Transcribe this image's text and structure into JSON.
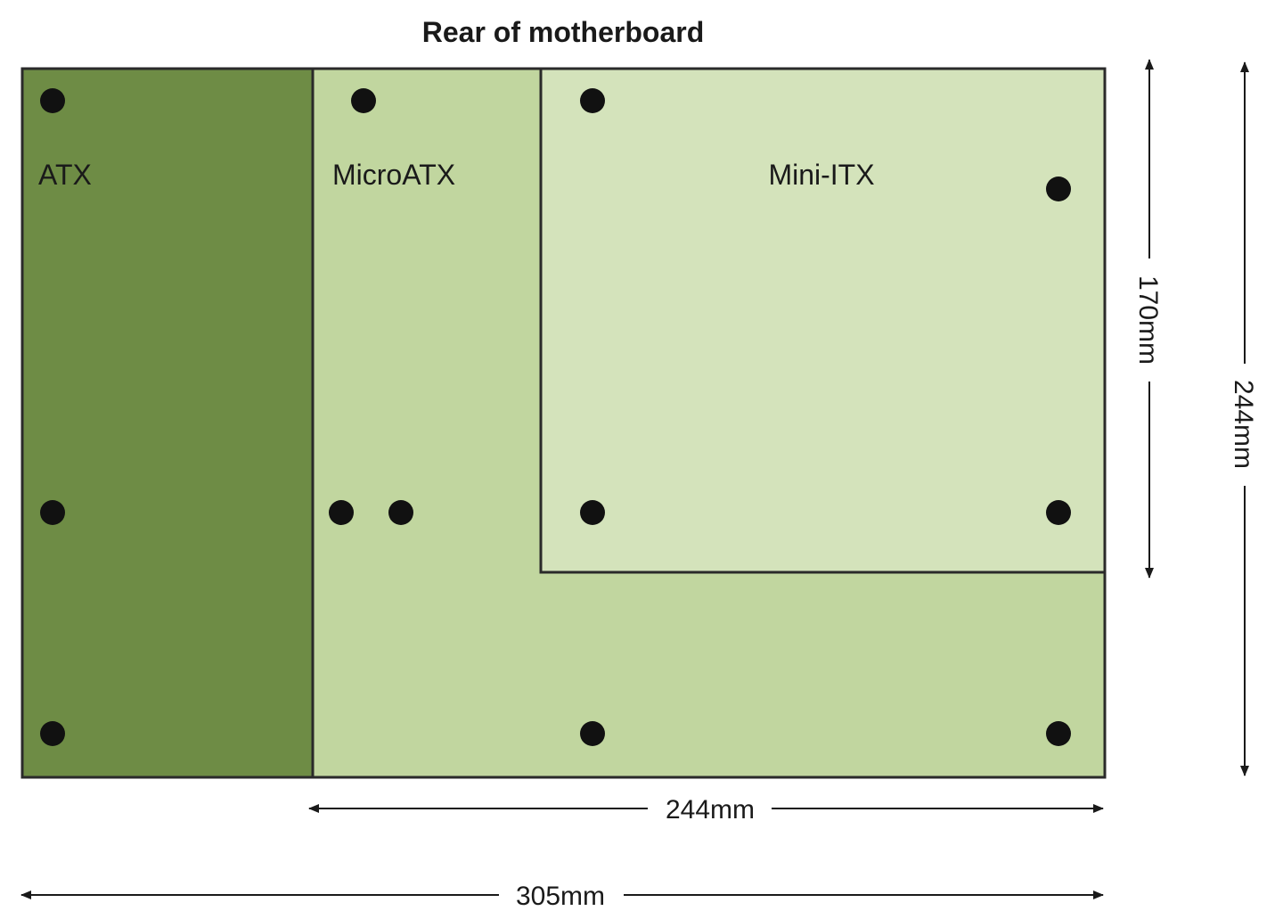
{
  "title": "Rear of motherboard",
  "boards": {
    "atx": {
      "label": "ATX",
      "color": "#6e8c45"
    },
    "microatx": {
      "label": "MicroATX",
      "color": "#c1d69f"
    },
    "miniitx": {
      "label": "Mini-ITX",
      "color": "#d4e3bb"
    }
  },
  "dimensions": {
    "microatx_width": "244mm",
    "atx_width": "305mm",
    "miniitx_height": "170mm",
    "board_height": "244mm"
  },
  "colors": {
    "outline": "#2a2a2a",
    "hole": "#111111",
    "arrow": "#1a1a1a"
  }
}
